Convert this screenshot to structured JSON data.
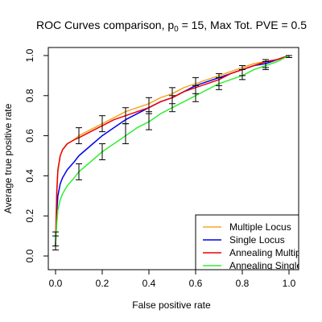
{
  "chart_data": {
    "type": "line",
    "title_prefix": "ROC Curves comparison, p",
    "title_subscript": "0",
    "title_suffix": " = 15, Max Tot. PVE = 0.5",
    "xlabel": "False positive rate",
    "ylabel": "Average true positive rate",
    "xlim": [
      0,
      1
    ],
    "ylim": [
      0,
      1
    ],
    "xticks": [
      {
        "value": 0.0,
        "label": "0.0"
      },
      {
        "value": 0.2,
        "label": "0.2"
      },
      {
        "value": 0.4,
        "label": "0.4"
      },
      {
        "value": 0.6,
        "label": "0.6"
      },
      {
        "value": 0.8,
        "label": "0.8"
      },
      {
        "value": 1.0,
        "label": "1.0"
      }
    ],
    "yticks": [
      {
        "value": 0.0,
        "label": "0.0"
      },
      {
        "value": 0.2,
        "label": "0.2"
      },
      {
        "value": 0.4,
        "label": "0.4"
      },
      {
        "value": 0.6,
        "label": "0.6"
      },
      {
        "value": 0.8,
        "label": "0.8"
      },
      {
        "value": 1.0,
        "label": "1.0"
      }
    ],
    "grid": false,
    "legend_position": "bottom-right",
    "series": [
      {
        "name": "Multiple Locus",
        "color": "#f5a623",
        "x": [
          0,
          0.005,
          0.01,
          0.02,
          0.03,
          0.05,
          0.08,
          0.1,
          0.15,
          0.2,
          0.25,
          0.3,
          0.35,
          0.4,
          0.45,
          0.5,
          0.55,
          0.6,
          0.65,
          0.7,
          0.75,
          0.8,
          0.85,
          0.9,
          0.95,
          1.0
        ],
        "y": [
          0.05,
          0.3,
          0.42,
          0.5,
          0.53,
          0.56,
          0.58,
          0.6,
          0.63,
          0.66,
          0.69,
          0.72,
          0.74,
          0.76,
          0.79,
          0.81,
          0.84,
          0.86,
          0.88,
          0.9,
          0.92,
          0.94,
          0.96,
          0.97,
          0.98,
          1.0
        ]
      },
      {
        "name": "Single Locus",
        "color": "#0000ee",
        "x": [
          0,
          0.005,
          0.01,
          0.02,
          0.03,
          0.05,
          0.08,
          0.1,
          0.15,
          0.2,
          0.25,
          0.3,
          0.35,
          0.4,
          0.45,
          0.5,
          0.55,
          0.6,
          0.65,
          0.7,
          0.75,
          0.8,
          0.85,
          0.9,
          0.95,
          1.0
        ],
        "y": [
          0.05,
          0.22,
          0.3,
          0.36,
          0.39,
          0.43,
          0.47,
          0.5,
          0.55,
          0.6,
          0.64,
          0.68,
          0.71,
          0.74,
          0.77,
          0.79,
          0.82,
          0.85,
          0.87,
          0.89,
          0.91,
          0.93,
          0.95,
          0.96,
          0.98,
          1.0
        ]
      },
      {
        "name": "Annealing Multiple Locus",
        "color": "#ee0000",
        "x": [
          0,
          0.005,
          0.01,
          0.02,
          0.03,
          0.05,
          0.08,
          0.1,
          0.15,
          0.2,
          0.25,
          0.3,
          0.35,
          0.4,
          0.45,
          0.5,
          0.55,
          0.6,
          0.65,
          0.7,
          0.75,
          0.8,
          0.85,
          0.9,
          0.95,
          1.0
        ],
        "y": [
          0.05,
          0.32,
          0.43,
          0.5,
          0.53,
          0.56,
          0.58,
          0.59,
          0.62,
          0.65,
          0.68,
          0.7,
          0.72,
          0.74,
          0.77,
          0.79,
          0.82,
          0.84,
          0.86,
          0.88,
          0.91,
          0.93,
          0.95,
          0.97,
          0.98,
          1.0
        ]
      },
      {
        "name": "Annealing Single Locus",
        "color": "#33ee33",
        "x": [
          0,
          0.005,
          0.01,
          0.02,
          0.03,
          0.05,
          0.08,
          0.1,
          0.15,
          0.2,
          0.25,
          0.3,
          0.35,
          0.4,
          0.45,
          0.5,
          0.55,
          0.6,
          0.65,
          0.7,
          0.75,
          0.8,
          0.85,
          0.9,
          0.95,
          1.0
        ],
        "y": [
          0.05,
          0.16,
          0.23,
          0.28,
          0.31,
          0.35,
          0.39,
          0.42,
          0.47,
          0.52,
          0.56,
          0.6,
          0.64,
          0.67,
          0.71,
          0.74,
          0.77,
          0.8,
          0.83,
          0.86,
          0.88,
          0.9,
          0.93,
          0.95,
          0.97,
          1.0
        ]
      }
    ],
    "error_bars": [
      {
        "x": 0.0,
        "low": 0.03,
        "high": 0.1
      },
      {
        "x": 0.0,
        "low": 0.05,
        "high": 0.12
      },
      {
        "x": 0.1,
        "low": 0.56,
        "high": 0.64
      },
      {
        "x": 0.1,
        "low": 0.38,
        "high": 0.46
      },
      {
        "x": 0.2,
        "low": 0.62,
        "high": 0.7
      },
      {
        "x": 0.2,
        "low": 0.48,
        "high": 0.56
      },
      {
        "x": 0.3,
        "low": 0.66,
        "high": 0.74
      },
      {
        "x": 0.3,
        "low": 0.56,
        "high": 0.66
      },
      {
        "x": 0.4,
        "low": 0.71,
        "high": 0.79
      },
      {
        "x": 0.4,
        "low": 0.63,
        "high": 0.72
      },
      {
        "x": 0.5,
        "low": 0.76,
        "high": 0.84
      },
      {
        "x": 0.5,
        "low": 0.72,
        "high": 0.8
      },
      {
        "x": 0.6,
        "low": 0.81,
        "high": 0.89
      },
      {
        "x": 0.6,
        "low": 0.77,
        "high": 0.85
      },
      {
        "x": 0.7,
        "low": 0.85,
        "high": 0.91
      },
      {
        "x": 0.7,
        "low": 0.83,
        "high": 0.89
      },
      {
        "x": 0.8,
        "low": 0.9,
        "high": 0.95
      },
      {
        "x": 0.8,
        "low": 0.88,
        "high": 0.93
      },
      {
        "x": 0.9,
        "low": 0.94,
        "high": 0.98
      },
      {
        "x": 0.9,
        "low": 0.93,
        "high": 0.97
      },
      {
        "x": 1.0,
        "low": 0.99,
        "high": 1.0
      }
    ]
  }
}
